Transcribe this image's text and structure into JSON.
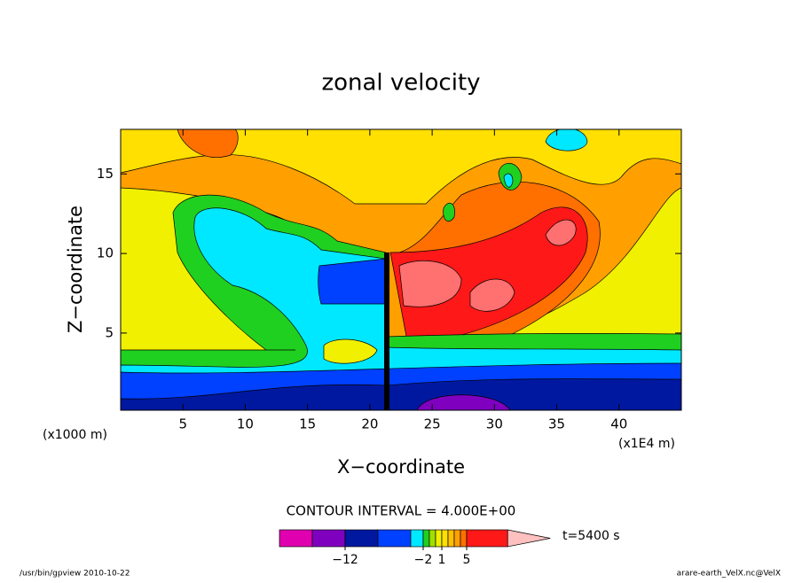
{
  "chart_data": {
    "type": "contour",
    "title": "zonal velocity",
    "x_label": "X−coordinate",
    "y_label": "Z−coordinate",
    "x_unit_left": "(x1000 m)",
    "x_unit_right": "(x1E4 m)",
    "xlim": [
      0,
      45
    ],
    "xticks": [
      5,
      10,
      15,
      20,
      25,
      30,
      35,
      40
    ],
    "ylim": [
      0.15,
      17.8
    ],
    "yticks": [
      5,
      10,
      15
    ],
    "contour_interval_text": "CONTOUR INTERVAL = 4.000E+00",
    "time_text": "t=5400 s",
    "footer_left": "/usr/bin/gpview  2010-10-22",
    "footer_right": "arare-earth_VelX.nc@VelX",
    "colorbar": {
      "levels": [
        -20,
        -16,
        -12,
        -8,
        -4,
        -2,
        -1,
        0,
        1,
        2,
        3,
        4,
        5,
        10
      ],
      "colors": [
        "#e000b0",
        "#8000c0",
        "#0018a0",
        "#0040ff",
        "#00e8ff",
        "#20d020",
        "#a0e000",
        "#f0f000",
        "#ffe000",
        "#ffc000",
        "#ffa000",
        "#ff7000",
        "#ff1818",
        "#ff7070"
      ],
      "extend_color": "#ffc0c0",
      "ticks": [
        {
          "value": -12,
          "label": "−12"
        },
        {
          "value": -2,
          "label": "−2"
        },
        1,
        5
      ]
    }
  }
}
